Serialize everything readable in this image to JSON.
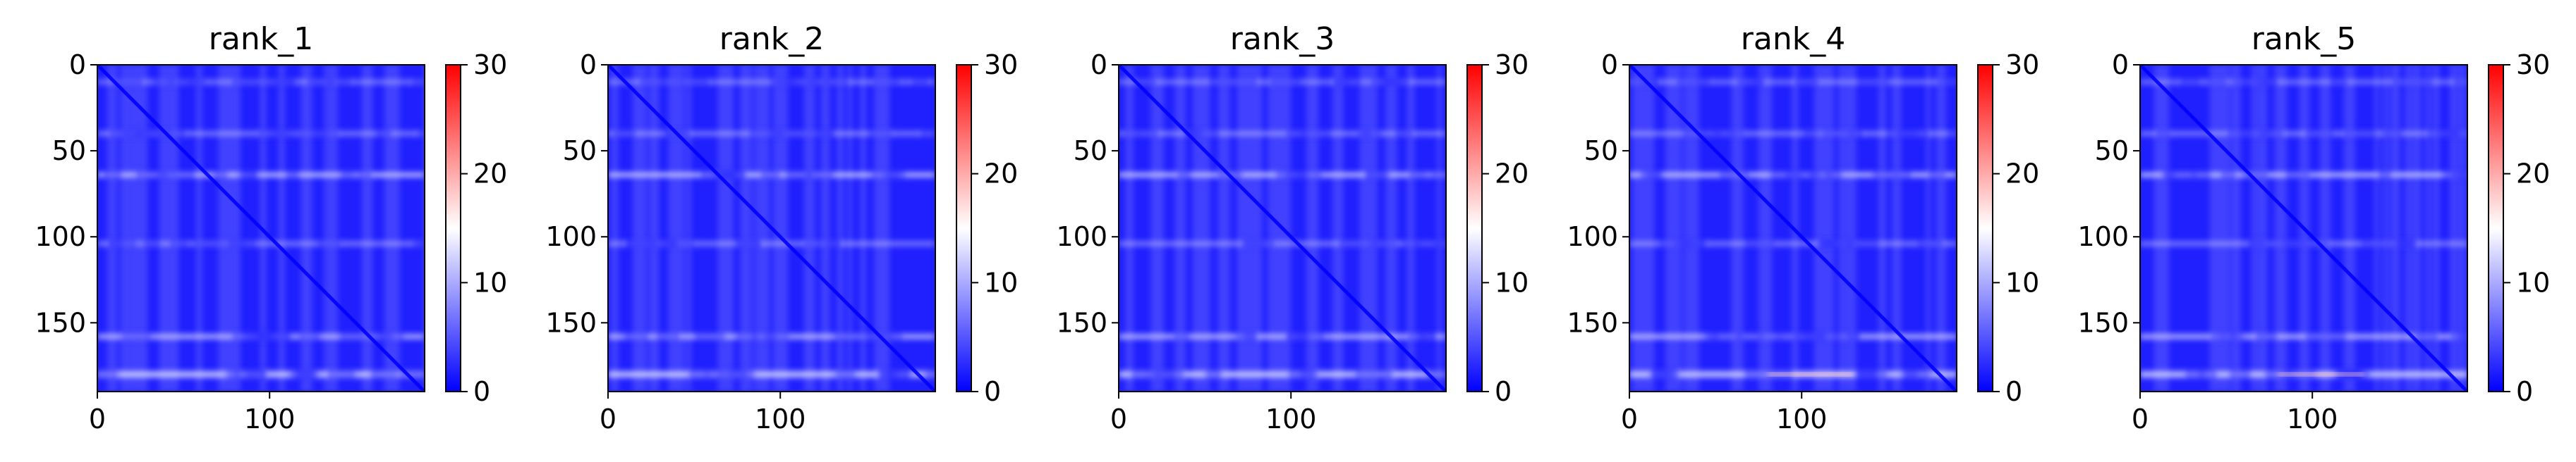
{
  "chart_data": [
    {
      "type": "heatmap",
      "title": "rank_1",
      "xlim": [
        0,
        190
      ],
      "ylim": [
        190,
        0
      ],
      "xticks": [
        0,
        100
      ],
      "yticks": [
        0,
        50,
        100,
        150
      ],
      "colorbar": {
        "range": [
          0,
          30
        ],
        "ticks": [
          0,
          10,
          20,
          30
        ],
        "colormap": "bwr"
      },
      "bright_rows": [
        10,
        40,
        64,
        104,
        158,
        180
      ],
      "diagonal": true,
      "grid": false
    },
    {
      "type": "heatmap",
      "title": "rank_2",
      "xlim": [
        0,
        190
      ],
      "ylim": [
        190,
        0
      ],
      "xticks": [
        0,
        100
      ],
      "yticks": [
        0,
        50,
        100,
        150
      ],
      "colorbar": {
        "range": [
          0,
          30
        ],
        "ticks": [
          0,
          10,
          20,
          30
        ],
        "colormap": "bwr"
      },
      "bright_rows": [
        10,
        40,
        64,
        104,
        158,
        180
      ],
      "diagonal": true,
      "grid": false
    },
    {
      "type": "heatmap",
      "title": "rank_3",
      "xlim": [
        0,
        190
      ],
      "ylim": [
        190,
        0
      ],
      "xticks": [
        0,
        100
      ],
      "yticks": [
        0,
        50,
        100,
        150
      ],
      "colorbar": {
        "range": [
          0,
          30
        ],
        "ticks": [
          0,
          10,
          20,
          30
        ],
        "colormap": "bwr"
      },
      "bright_rows": [
        10,
        40,
        64,
        104,
        158,
        180
      ],
      "diagonal": true,
      "grid": false
    },
    {
      "type": "heatmap",
      "title": "rank_4",
      "xlim": [
        0,
        190
      ],
      "ylim": [
        190,
        0
      ],
      "xticks": [
        0,
        100
      ],
      "yticks": [
        0,
        50,
        100,
        150
      ],
      "colorbar": {
        "range": [
          0,
          30
        ],
        "ticks": [
          0,
          10,
          20,
          30
        ],
        "colormap": "bwr"
      },
      "bright_rows": [
        10,
        40,
        64,
        104,
        158,
        180
      ],
      "diagonal": true,
      "grid": false
    },
    {
      "type": "heatmap",
      "title": "rank_5",
      "xlim": [
        0,
        190
      ],
      "ylim": [
        190,
        0
      ],
      "xticks": [
        0,
        100
      ],
      "yticks": [
        0,
        50,
        100,
        150
      ],
      "colorbar": {
        "range": [
          0,
          30
        ],
        "ticks": [
          0,
          10,
          20,
          30
        ],
        "colormap": "bwr"
      },
      "bright_rows": [
        10,
        40,
        64,
        104,
        158,
        180
      ],
      "diagonal": true,
      "grid": false
    }
  ],
  "colors": {
    "low": "#0000ff",
    "mid": "#ffffff",
    "high": "#ff0000"
  }
}
